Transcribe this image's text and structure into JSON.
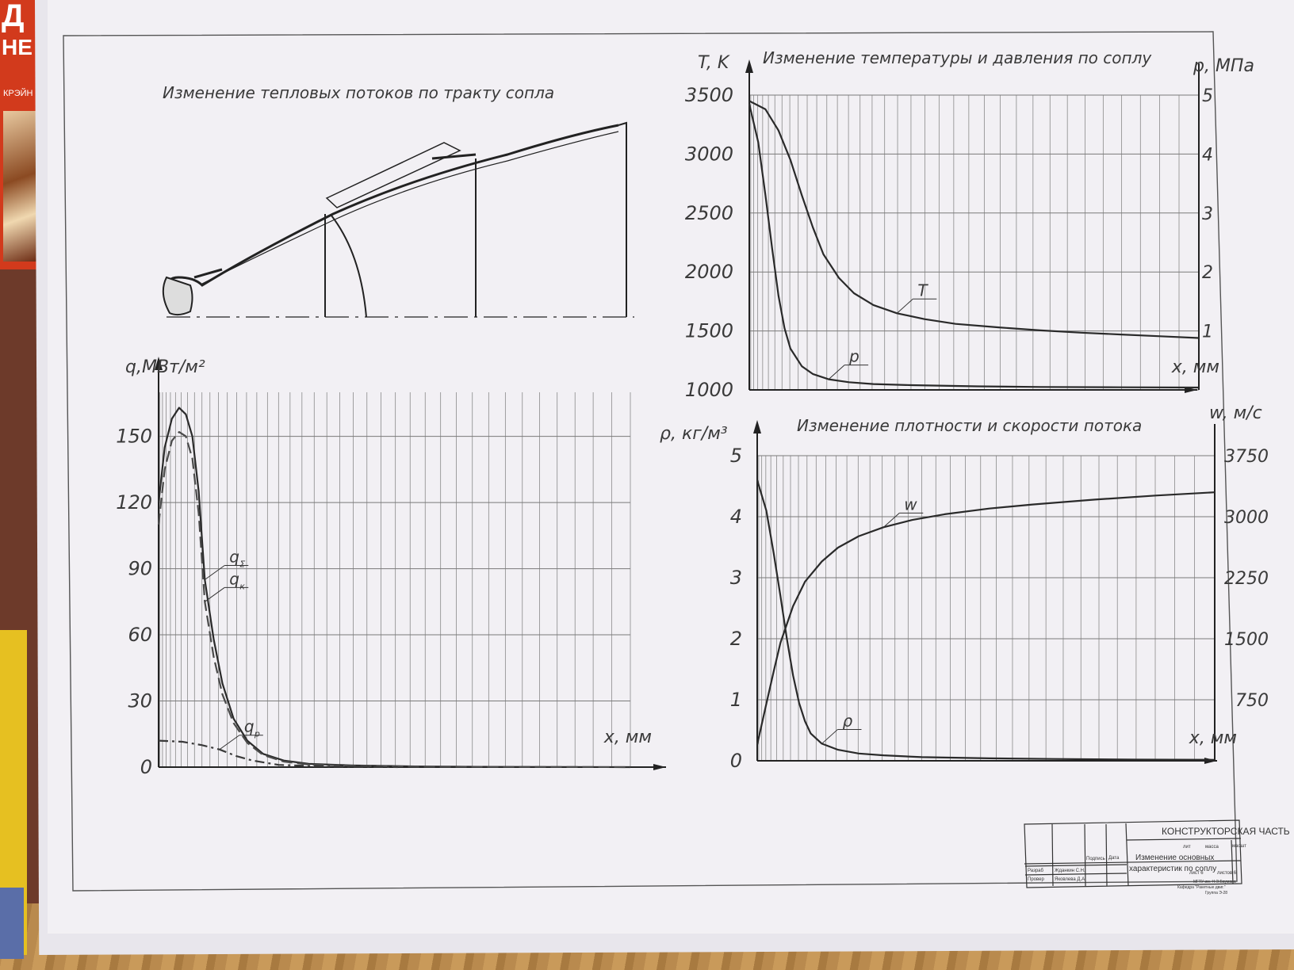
{
  "sheet": {
    "title_block": {
      "header": "КОНСТРУКТОРСКАЯ ЧАСТЬ",
      "name_line1": "Изменение основных",
      "name_line2": "характеристик по соплу",
      "col_podpis": "Подпись",
      "col_data": "Дата",
      "row1_role": "Разраб",
      "row1_name": "Жданкин С.Н.",
      "row2_role": "Провер",
      "row2_name": "Яковлева Д.А.",
      "lit": "лит",
      "massa": "масса",
      "masshtab": "масшт",
      "list": "лист 6",
      "listov": "листов 6",
      "org_line1": "МГТУ им. Н.Э.Баумана",
      "org_line2": "Кафедра \"Ракетные двиг.\"",
      "org_line3": "Группа Э-28"
    },
    "book_text": {
      "big": "Д",
      "big2": "НЕ",
      "small": "КРЭЙН"
    }
  },
  "chart_data": [
    {
      "type": "line",
      "title": "Изменение тепловых потоков по тракту сопла",
      "ylabel": "q,МВт/м²",
      "xlabel": "x, мм",
      "yticks": [
        "0",
        "30",
        "60",
        "90",
        "120",
        "150"
      ],
      "ylim": [
        0,
        170
      ],
      "x_domain": [
        0,
        1
      ],
      "series": [
        {
          "name": "q_Σ",
          "label": "q",
          "sub": "Σ",
          "style": "solid",
          "color": "#2a2a2a",
          "x": [
            0,
            0.006,
            0.015,
            0.025,
            0.035,
            0.045,
            0.055,
            0.065,
            0.08,
            0.095,
            0.115,
            0.14,
            0.17,
            0.21,
            0.26,
            0.35,
            0.5,
            0.7,
            1.0
          ],
          "y": [
            120,
            145,
            158,
            163,
            160,
            150,
            125,
            85,
            58,
            38,
            22,
            12,
            6,
            3,
            1.5,
            0.8,
            0.3,
            0.1,
            0
          ]
        },
        {
          "name": "q_к",
          "label": "q",
          "sub": "к",
          "style": "dashed",
          "color": "#4a4a4a",
          "x": [
            0,
            0.006,
            0.015,
            0.025,
            0.035,
            0.045,
            0.055,
            0.065,
            0.08,
            0.095,
            0.115,
            0.14,
            0.17,
            0.21,
            0.26,
            0.35,
            0.5,
            0.7,
            1.0
          ],
          "y": [
            110,
            135,
            148,
            152,
            150,
            140,
            115,
            75,
            50,
            33,
            20,
            11,
            5.5,
            2.5,
            1.2,
            0.6,
            0.2,
            0.1,
            0
          ]
        },
        {
          "name": "q_р",
          "label": "q",
          "sub": "р",
          "style": "dashdot",
          "color": "#3a3a3a",
          "x": [
            0,
            0.03,
            0.06,
            0.09,
            0.12,
            0.15,
            0.2,
            0.3,
            0.45
          ],
          "y": [
            12,
            11.5,
            10,
            8,
            5,
            3,
            1,
            0.3,
            0
          ]
        }
      ]
    },
    {
      "type": "line",
      "title": "Изменение температуры и давления по соплу",
      "ylabel": "T, K",
      "y2label": "p, МПа",
      "xlabel": "x, мм",
      "yticks": [
        "1000",
        "1500",
        "2000",
        "2500",
        "3000",
        "3500"
      ],
      "y2ticks": [
        "1",
        "2",
        "3",
        "4",
        "5"
      ],
      "ylim": [
        1000,
        3500
      ],
      "y2lim": [
        0,
        5
      ],
      "x_domain": [
        0,
        1
      ],
      "series": [
        {
          "name": "T",
          "axis": "left",
          "color": "#2a2a2a",
          "x": [
            0,
            0.02,
            0.04,
            0.06,
            0.08,
            0.1,
            0.12,
            0.15,
            0.18,
            0.22,
            0.27,
            0.33,
            0.4,
            0.5,
            0.6,
            0.7,
            0.8,
            0.9,
            1.0
          ],
          "y": [
            3450,
            3380,
            3200,
            2950,
            2650,
            2380,
            2150,
            1950,
            1820,
            1720,
            1650,
            1600,
            1560,
            1530,
            1505,
            1485,
            1470,
            1455,
            1440
          ]
        },
        {
          "name": "p",
          "axis": "right",
          "color": "#2a2a2a",
          "x": [
            0,
            0.01,
            0.02,
            0.03,
            0.04,
            0.05,
            0.06,
            0.08,
            0.1,
            0.13,
            0.17,
            0.22,
            0.3,
            0.45,
            0.6,
            0.8,
            1.0
          ],
          "y": [
            4.85,
            4.2,
            3.3,
            2.4,
            1.6,
            1.05,
            0.7,
            0.4,
            0.27,
            0.18,
            0.13,
            0.1,
            0.08,
            0.06,
            0.05,
            0.045,
            0.04
          ]
        }
      ]
    },
    {
      "type": "line",
      "title": "Изменение плотности и скорости потока",
      "ylabel": "ρ, кг/м³",
      "y2label": "w, м/с",
      "xlabel": "x, мм",
      "yticks": [
        "0",
        "1",
        "2",
        "3",
        "4",
        "5"
      ],
      "y2ticks": [
        "750",
        "1500",
        "2250",
        "3000",
        "3750"
      ],
      "ylim": [
        0,
        5
      ],
      "y2lim": [
        0,
        3750
      ],
      "x_domain": [
        0,
        1
      ],
      "series": [
        {
          "name": "w",
          "axis": "right",
          "color": "#2a2a2a",
          "x": [
            0,
            0.01,
            0.02,
            0.03,
            0.05,
            0.07,
            0.1,
            0.13,
            0.17,
            0.22,
            0.28,
            0.35,
            0.45,
            0.55,
            0.7,
            0.85,
            1.0
          ],
          "y": [
            200,
            700,
            1100,
            1450,
            1900,
            2200,
            2450,
            2620,
            2760,
            2870,
            2960,
            3030,
            3100,
            3150,
            3210,
            3260,
            3300
          ]
        },
        {
          "name": "ρ",
          "axis": "left",
          "color": "#2a2a2a",
          "x": [
            0,
            0.01,
            0.02,
            0.03,
            0.04,
            0.05,
            0.06,
            0.07,
            0.08,
            0.1,
            0.13,
            0.17,
            0.22,
            0.3,
            0.45,
            0.6,
            0.8,
            1.0
          ],
          "y": [
            4.6,
            4.1,
            3.4,
            2.7,
            2.0,
            1.4,
            0.95,
            0.65,
            0.45,
            0.28,
            0.18,
            0.12,
            0.09,
            0.06,
            0.04,
            0.03,
            0.02,
            0.015
          ]
        }
      ]
    }
  ]
}
